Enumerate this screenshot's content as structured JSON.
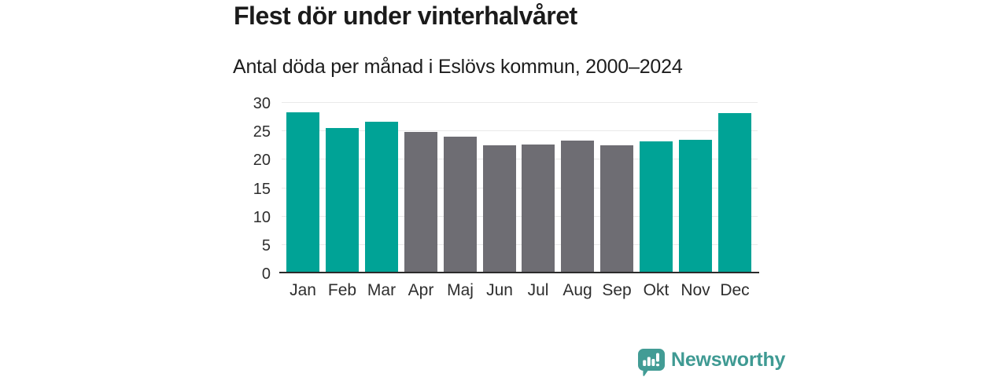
{
  "chart_data": {
    "type": "bar",
    "title": "Flest dör under vinterhalvåret",
    "subtitle": "Antal döda per månad i Eslövs kommun, 2000–2024",
    "categories": [
      "Jan",
      "Feb",
      "Mar",
      "Apr",
      "Maj",
      "Jun",
      "Jul",
      "Aug",
      "Sep",
      "Okt",
      "Nov",
      "Dec"
    ],
    "values": [
      28.2,
      25.4,
      26.5,
      24.8,
      23.9,
      22.4,
      22.5,
      23.2,
      22.4,
      23.1,
      23.4,
      28.0
    ],
    "bar_groups": [
      "winter",
      "winter",
      "winter",
      "summer",
      "summer",
      "summer",
      "summer",
      "summer",
      "summer",
      "winter",
      "winter",
      "winter"
    ],
    "palette": {
      "winter": "#00a396",
      "summer": "#6e6d73"
    },
    "xlabel": "",
    "ylabel": "",
    "ylim": [
      0,
      30
    ],
    "yticks": [
      0,
      5,
      10,
      15,
      20,
      25,
      30
    ],
    "grid": true,
    "legend_position": "none"
  },
  "colors": {
    "background": "#ffffff",
    "title_text": "#1b1b1b",
    "axis_text": "#2e2e2e",
    "gridline": "#e9e9e9",
    "axis_line": "#2b2b2b",
    "brand_teal": "#3f9a93",
    "bar_winter": "#00a396",
    "bar_summer": "#6e6d73"
  },
  "branding": {
    "label": "Newsworthy",
    "icon": "newsworthy-bar-chart-bubble-icon"
  }
}
